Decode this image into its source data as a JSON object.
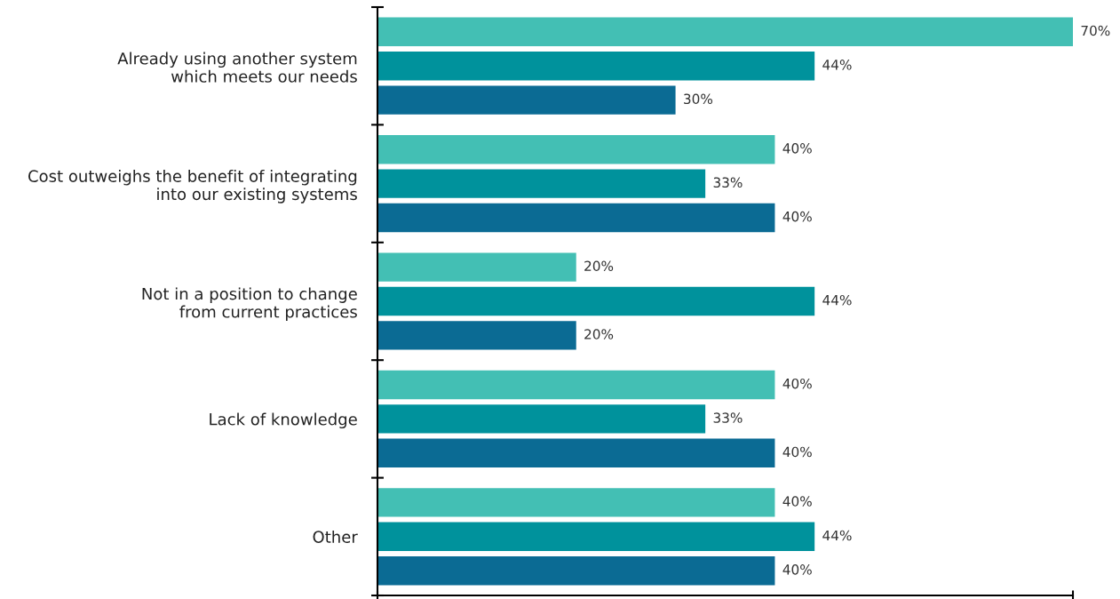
{
  "chart_data": {
    "type": "bar",
    "orientation": "horizontal",
    "categories": [
      "Already using another system\nwhich meets our needs",
      "Cost outweighs the benefit of integrating\ninto our existing systems",
      "Not in a position to change\nfrom current practices",
      "Lack of knowledge",
      "Other"
    ],
    "series": [
      {
        "color": "#43bfb4",
        "values": [
          70,
          40,
          20,
          40,
          40
        ],
        "value_labels": [
          "70%",
          "40%",
          "20%",
          "40%",
          "40%"
        ]
      },
      {
        "color": "#00929c",
        "values": [
          44,
          33,
          44,
          33,
          44
        ],
        "value_labels": [
          "44%",
          "33%",
          "44%",
          "33%",
          "44%"
        ]
      },
      {
        "color": "#0b6b94",
        "values": [
          30,
          40,
          20,
          40,
          40
        ],
        "value_labels": [
          "30%",
          "40%",
          "20%",
          "40%",
          "40%"
        ]
      }
    ],
    "xlim": [
      0,
      70
    ],
    "xticks": [
      {
        "value": 0,
        "label": null
      },
      {
        "value": 70,
        "label": null
      }
    ],
    "tick_labels": "y",
    "grid": false,
    "legend": false
  }
}
